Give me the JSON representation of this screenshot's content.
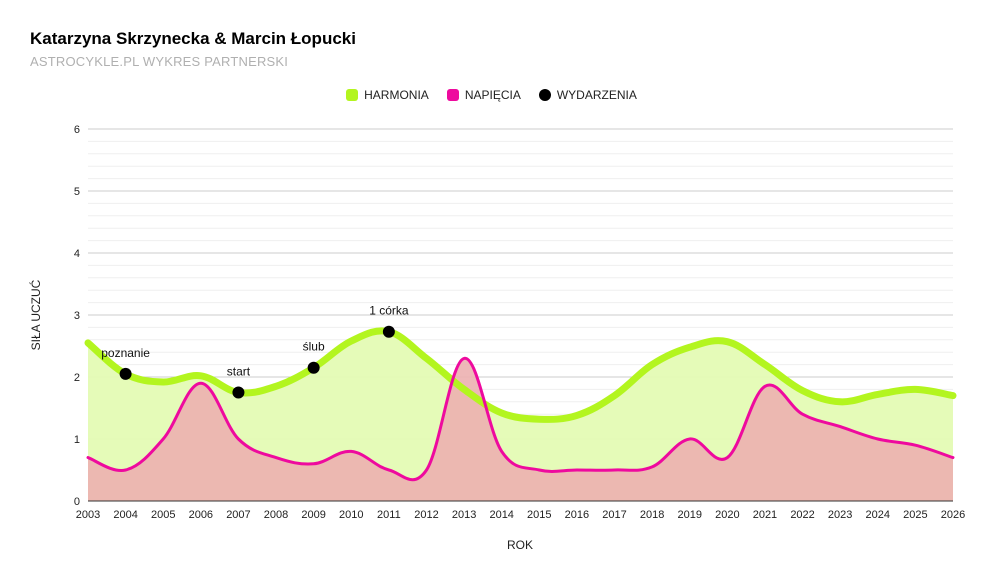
{
  "title": "Katarzyna Skrzynecka & Marcin Łopucki",
  "subtitle": "ASTROCYKLE.PL WYKRES PARTNERSKI",
  "chart_data": {
    "type": "area",
    "xlabel": "ROK",
    "ylabel": "SIŁA UCZUĆ",
    "xlim": [
      2003,
      2026
    ],
    "ylim": [
      0,
      6
    ],
    "yticks": [
      0,
      1,
      2,
      3,
      4,
      5,
      6
    ],
    "xticks": [
      2003,
      2004,
      2005,
      2006,
      2007,
      2008,
      2009,
      2010,
      2011,
      2012,
      2013,
      2014,
      2015,
      2016,
      2017,
      2018,
      2019,
      2020,
      2021,
      2022,
      2023,
      2024,
      2025,
      2026
    ],
    "legend_position": "top-center",
    "series": [
      {
        "name": "HARMONIA",
        "color": "#b3f51f",
        "fill": "#e4fbb4",
        "x": [
          2003,
          2004,
          2005,
          2006,
          2007,
          2008,
          2009,
          2010,
          2011,
          2012,
          2013,
          2014,
          2015,
          2016,
          2017,
          2018,
          2019,
          2020,
          2021,
          2022,
          2023,
          2024,
          2025,
          2026
        ],
        "values": [
          2.55,
          2.05,
          1.92,
          2.02,
          1.75,
          1.85,
          2.15,
          2.58,
          2.73,
          2.3,
          1.8,
          1.42,
          1.32,
          1.38,
          1.7,
          2.2,
          2.48,
          2.57,
          2.2,
          1.78,
          1.6,
          1.72,
          1.8,
          1.7
        ]
      },
      {
        "name": "NAPIĘCIA",
        "color": "#ee0a9e",
        "fill": "#ecb0b0",
        "x": [
          2003,
          2004,
          2005,
          2006,
          2007,
          2008,
          2009,
          2010,
          2011,
          2012,
          2013,
          2014,
          2015,
          2016,
          2017,
          2018,
          2019,
          2020,
          2021,
          2022,
          2023,
          2024,
          2025,
          2026
        ],
        "values": [
          0.7,
          0.5,
          1.0,
          1.9,
          1.0,
          0.7,
          0.6,
          0.8,
          0.5,
          0.5,
          2.3,
          0.8,
          0.5,
          0.5,
          0.5,
          0.55,
          1.0,
          0.7,
          1.85,
          1.4,
          1.2,
          1.0,
          0.9,
          0.7
        ]
      }
    ],
    "events": {
      "name": "WYDARZENIA",
      "color": "#000000",
      "points": [
        {
          "x": 2004,
          "y": 2.05,
          "label": "poznanie"
        },
        {
          "x": 2007,
          "y": 1.75,
          "label": "start"
        },
        {
          "x": 2009,
          "y": 2.15,
          "label": "ślub"
        },
        {
          "x": 2011,
          "y": 2.73,
          "label": "1 córka"
        }
      ]
    }
  }
}
